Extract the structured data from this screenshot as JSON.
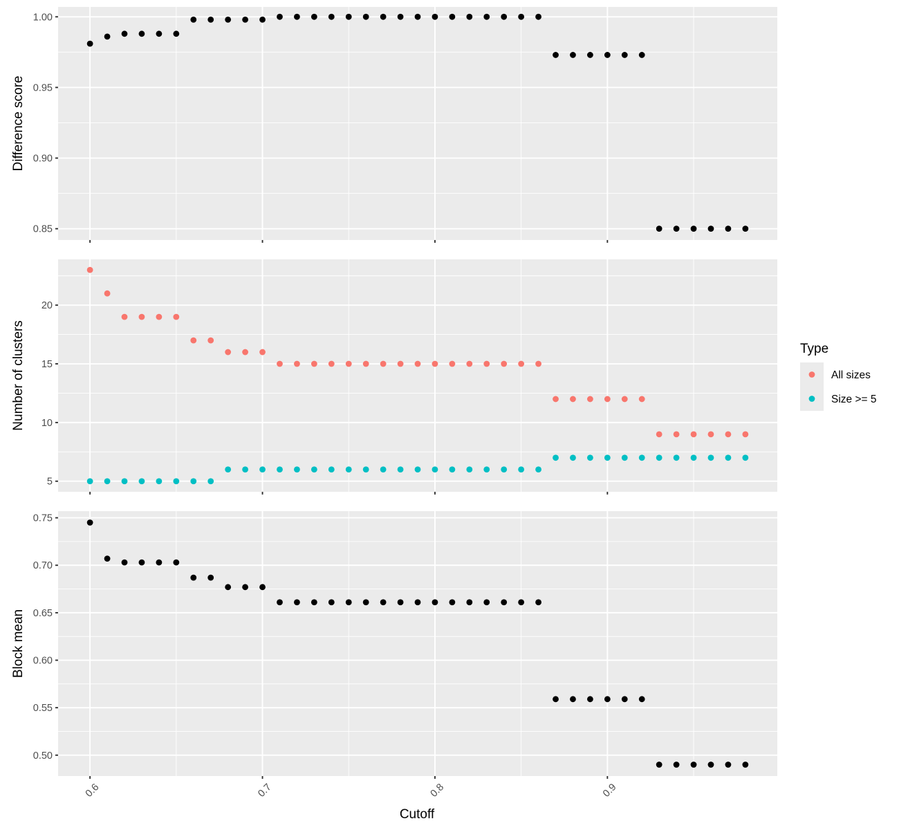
{
  "chart_data": {
    "type": "scatter",
    "x": [
      0.6,
      0.61,
      0.62,
      0.63,
      0.64,
      0.65,
      0.66,
      0.67,
      0.68,
      0.69,
      0.7,
      0.71,
      0.72,
      0.73,
      0.74,
      0.75,
      0.76,
      0.77,
      0.78,
      0.79,
      0.8,
      0.81,
      0.82,
      0.83,
      0.84,
      0.85,
      0.86,
      0.87,
      0.88,
      0.89,
      0.9,
      0.91,
      0.92,
      0.93,
      0.94,
      0.95,
      0.96,
      0.97,
      0.98
    ],
    "xlabel": "Cutoff",
    "x_ticks": [
      "0.6",
      "0.7",
      "0.8",
      "0.9"
    ],
    "x_tick_values": [
      0.6,
      0.7,
      0.8,
      0.9
    ],
    "xlim": [
      0.5815,
      0.9985
    ],
    "grid": true,
    "legend_position": "right",
    "panels": [
      {
        "ylabel": "Difference score",
        "ylim": [
          0.842,
          1.007
        ],
        "y_ticks": [
          "0.85",
          "0.90",
          "0.95",
          "1.00"
        ],
        "y_tick_values": [
          0.85,
          0.9,
          0.95,
          1.0
        ],
        "series": [
          {
            "color": "#000000",
            "values": [
              0.981,
              0.986,
              0.988,
              0.988,
              0.988,
              0.988,
              0.998,
              0.998,
              0.998,
              0.998,
              0.998,
              1.0,
              1.0,
              1.0,
              1.0,
              1.0,
              1.0,
              1.0,
              1.0,
              1.0,
              1.0,
              1.0,
              1.0,
              1.0,
              1.0,
              1.0,
              1.0,
              0.973,
              0.973,
              0.973,
              0.973,
              0.973,
              0.973,
              0.85,
              0.85,
              0.85,
              0.85,
              0.85,
              0.85
            ]
          }
        ]
      },
      {
        "ylabel": "Number of clusters",
        "ylim": [
          4.1,
          23.9
        ],
        "y_ticks": [
          "5",
          "10",
          "15",
          "20"
        ],
        "y_tick_values": [
          5,
          10,
          15,
          20
        ],
        "series": [
          {
            "name": "All sizes",
            "color": "#f8766d",
            "values": [
              23,
              21,
              19,
              19,
              19,
              19,
              17,
              17,
              16,
              16,
              16,
              15,
              15,
              15,
              15,
              15,
              15,
              15,
              15,
              15,
              15,
              15,
              15,
              15,
              15,
              15,
              15,
              12,
              12,
              12,
              12,
              12,
              12,
              9,
              9,
              9,
              9,
              9,
              9
            ]
          },
          {
            "name": "Size >= 5",
            "color": "#00bfc4",
            "values": [
              5,
              5,
              5,
              5,
              5,
              5,
              5,
              5,
              6,
              6,
              6,
              6,
              6,
              6,
              6,
              6,
              6,
              6,
              6,
              6,
              6,
              6,
              6,
              6,
              6,
              6,
              6,
              7,
              7,
              7,
              7,
              7,
              7,
              7,
              7,
              7,
              7,
              7,
              7
            ]
          }
        ]
      },
      {
        "ylabel": "Block mean",
        "ylim": [
          0.478,
          0.757
        ],
        "y_ticks": [
          "0.50",
          "0.55",
          "0.60",
          "0.65",
          "0.70",
          "0.75"
        ],
        "y_tick_values": [
          0.5,
          0.55,
          0.6,
          0.65,
          0.7,
          0.75
        ],
        "series": [
          {
            "color": "#000000",
            "values": [
              0.745,
              0.707,
              0.703,
              0.703,
              0.703,
              0.703,
              0.687,
              0.687,
              0.677,
              0.677,
              0.677,
              0.661,
              0.661,
              0.661,
              0.661,
              0.661,
              0.661,
              0.661,
              0.661,
              0.661,
              0.661,
              0.661,
              0.661,
              0.661,
              0.661,
              0.661,
              0.661,
              0.559,
              0.559,
              0.559,
              0.559,
              0.559,
              0.559,
              0.49,
              0.49,
              0.49,
              0.49,
              0.49,
              0.49
            ]
          }
        ]
      }
    ],
    "legend": {
      "title": "Type",
      "entries": [
        {
          "label": "All sizes",
          "color": "#f8766d"
        },
        {
          "label": "Size >= 5",
          "color": "#00bfc4"
        }
      ]
    }
  }
}
